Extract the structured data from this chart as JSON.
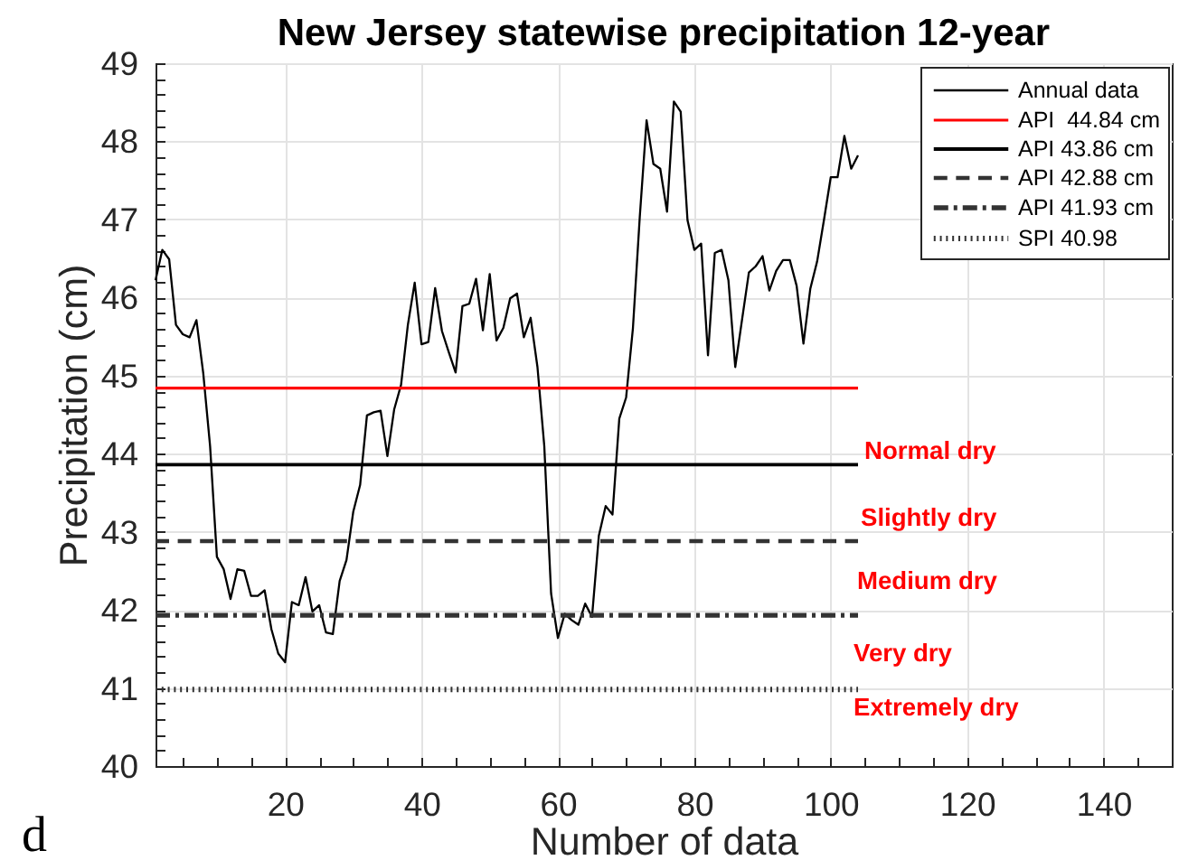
{
  "chart_data": {
    "type": "line",
    "title": "New Jersey statewise precipitation 12-year",
    "xlabel": "Number of data",
    "ylabel": "Precipitation (cm)",
    "xlim": [
      1,
      150
    ],
    "ylim": [
      40,
      49
    ],
    "xticks": [
      {
        "value": 5,
        "label": null
      },
      {
        "value": 10,
        "label": null
      },
      {
        "value": 15,
        "label": null
      },
      20,
      {
        "value": 25,
        "label": null
      },
      {
        "value": 30,
        "label": null
      },
      {
        "value": 35,
        "label": null
      },
      40,
      {
        "value": 45,
        "label": null
      },
      {
        "value": 50,
        "label": null
      },
      {
        "value": 55,
        "label": null
      },
      60,
      {
        "value": 65,
        "label": null
      },
      {
        "value": 70,
        "label": null
      },
      {
        "value": 75,
        "label": null
      },
      80,
      {
        "value": 85,
        "label": null
      },
      {
        "value": 90,
        "label": null
      },
      {
        "value": 95,
        "label": null
      },
      100,
      {
        "value": 105,
        "label": null
      },
      {
        "value": 110,
        "label": null
      },
      {
        "value": 115,
        "label": null
      },
      120,
      {
        "value": 125,
        "label": null
      },
      {
        "value": 130,
        "label": null
      },
      {
        "value": 135,
        "label": null
      },
      140,
      {
        "value": 145,
        "label": null
      }
    ],
    "yticks": [
      40,
      {
        "value": 40.2,
        "label": null
      },
      {
        "value": 40.4,
        "label": null
      },
      {
        "value": 40.6,
        "label": null
      },
      {
        "value": 40.8,
        "label": null
      },
      41,
      {
        "value": 41.2,
        "label": null
      },
      {
        "value": 41.4,
        "label": null
      },
      {
        "value": 41.6,
        "label": null
      },
      {
        "value": 41.8,
        "label": null
      },
      42,
      {
        "value": 42.2,
        "label": null
      },
      {
        "value": 42.4,
        "label": null
      },
      {
        "value": 42.6,
        "label": null
      },
      {
        "value": 42.8,
        "label": null
      },
      43,
      {
        "value": 43.2,
        "label": null
      },
      {
        "value": 43.4,
        "label": null
      },
      {
        "value": 43.6,
        "label": null
      },
      {
        "value": 43.8,
        "label": null
      },
      44,
      {
        "value": 44.2,
        "label": null
      },
      {
        "value": 44.4,
        "label": null
      },
      {
        "value": 44.6,
        "label": null
      },
      {
        "value": 44.8,
        "label": null
      },
      45,
      {
        "value": 45.2,
        "label": null
      },
      {
        "value": 45.4,
        "label": null
      },
      {
        "value": 45.6,
        "label": null
      },
      {
        "value": 45.8,
        "label": null
      },
      46,
      {
        "value": 46.2,
        "label": null
      },
      {
        "value": 46.4,
        "label": null
      },
      {
        "value": 46.6,
        "label": null
      },
      {
        "value": 46.8,
        "label": null
      },
      47,
      {
        "value": 47.2,
        "label": null
      },
      {
        "value": 47.4,
        "label": null
      },
      {
        "value": 47.6,
        "label": null
      },
      {
        "value": 47.8,
        "label": null
      },
      48,
      {
        "value": 48.2,
        "label": null
      },
      {
        "value": 48.4,
        "label": null
      },
      {
        "value": 48.6,
        "label": null
      },
      {
        "value": 48.8,
        "label": null
      },
      49
    ],
    "x": [
      1,
      2,
      3,
      4,
      5,
      6,
      7,
      8,
      9,
      10,
      11,
      12,
      13,
      14,
      15,
      16,
      17,
      18,
      19,
      20,
      21,
      22,
      23,
      24,
      25,
      26,
      27,
      28,
      29,
      30,
      31,
      32,
      33,
      34,
      35,
      36,
      37,
      38,
      39,
      40,
      41,
      42,
      43,
      44,
      45,
      46,
      47,
      48,
      49,
      50,
      51,
      52,
      53,
      54,
      55,
      56,
      57,
      58,
      59,
      60,
      61,
      62,
      63,
      64,
      65,
      66,
      67,
      68,
      69,
      70,
      71,
      72,
      73,
      74,
      75,
      76,
      77,
      78,
      79,
      80,
      81,
      82,
      83,
      84,
      85,
      86,
      87,
      88,
      89,
      90,
      91,
      92,
      93,
      94,
      95,
      96,
      97,
      98,
      99,
      100,
      101,
      102,
      103,
      104
    ],
    "series": [
      {
        "name": "Annual data",
        "color": "#000000",
        "line_style": "solid",
        "values": [
          46.22,
          46.61,
          46.49,
          45.65,
          45.53,
          45.49,
          45.71,
          45.03,
          44.1,
          42.68,
          42.52,
          42.14,
          42.52,
          42.5,
          42.18,
          42.18,
          42.25,
          41.75,
          41.44,
          41.33,
          42.1,
          42.06,
          42.42,
          41.98,
          42.06,
          41.71,
          41.69,
          42.37,
          42.64,
          43.26,
          43.6,
          44.49,
          44.53,
          44.55,
          43.97,
          44.57,
          44.88,
          45.65,
          46.19,
          45.4,
          45.43,
          46.12,
          45.57,
          45.3,
          45.04,
          45.89,
          45.92,
          46.24,
          45.58,
          46.3,
          45.45,
          45.61,
          45.99,
          46.05,
          45.49,
          45.74,
          45.11,
          44.1,
          42.21,
          41.64,
          41.95,
          41.87,
          41.81,
          42.08,
          41.91,
          42.95,
          43.33,
          43.22,
          44.45,
          44.72,
          45.61,
          47.03,
          48.27,
          47.71,
          47.65,
          47.1,
          48.51,
          48.38,
          46.99,
          46.61,
          46.69,
          45.26,
          46.57,
          46.61,
          46.22,
          45.11,
          45.72,
          46.32,
          46.4,
          46.53,
          46.09,
          46.34,
          46.48,
          46.48,
          46.15,
          45.41,
          46.11,
          46.46,
          46.99,
          47.54,
          47.54,
          48.07,
          47.65,
          47.82
        ]
      },
      {
        "name": "API  44.84 cm",
        "color": "#ff0000",
        "line_style": "solid",
        "values": [
          44.84,
          44.84,
          44.84,
          44.84,
          44.84,
          44.84,
          44.84,
          44.84,
          44.84,
          44.84,
          44.84,
          44.84,
          44.84,
          44.84,
          44.84,
          44.84,
          44.84,
          44.84,
          44.84,
          44.84,
          44.84,
          44.84,
          44.84,
          44.84,
          44.84,
          44.84,
          44.84,
          44.84,
          44.84,
          44.84,
          44.84,
          44.84,
          44.84,
          44.84,
          44.84,
          44.84,
          44.84,
          44.84,
          44.84,
          44.84,
          44.84,
          44.84,
          44.84,
          44.84,
          44.84,
          44.84,
          44.84,
          44.84,
          44.84,
          44.84,
          44.84,
          44.84,
          44.84,
          44.84,
          44.84,
          44.84,
          44.84,
          44.84,
          44.84,
          44.84,
          44.84,
          44.84,
          44.84,
          44.84,
          44.84,
          44.84,
          44.84,
          44.84,
          44.84,
          44.84,
          44.84,
          44.84,
          44.84,
          44.84,
          44.84,
          44.84,
          44.84,
          44.84,
          44.84,
          44.84,
          44.84,
          44.84,
          44.84,
          44.84,
          44.84,
          44.84,
          44.84,
          44.84,
          44.84,
          44.84,
          44.84,
          44.84,
          44.84,
          44.84,
          44.84,
          44.84,
          44.84,
          44.84,
          44.84,
          44.84,
          44.84,
          44.84,
          44.84,
          44.84
        ]
      },
      {
        "name": "API 43.86 cm",
        "color": "#000000",
        "line_style": "solid",
        "values": [
          43.86,
          43.86,
          43.86,
          43.86,
          43.86,
          43.86,
          43.86,
          43.86,
          43.86,
          43.86,
          43.86,
          43.86,
          43.86,
          43.86,
          43.86,
          43.86,
          43.86,
          43.86,
          43.86,
          43.86,
          43.86,
          43.86,
          43.86,
          43.86,
          43.86,
          43.86,
          43.86,
          43.86,
          43.86,
          43.86,
          43.86,
          43.86,
          43.86,
          43.86,
          43.86,
          43.86,
          43.86,
          43.86,
          43.86,
          43.86,
          43.86,
          43.86,
          43.86,
          43.86,
          43.86,
          43.86,
          43.86,
          43.86,
          43.86,
          43.86,
          43.86,
          43.86,
          43.86,
          43.86,
          43.86,
          43.86,
          43.86,
          43.86,
          43.86,
          43.86,
          43.86,
          43.86,
          43.86,
          43.86,
          43.86,
          43.86,
          43.86,
          43.86,
          43.86,
          43.86,
          43.86,
          43.86,
          43.86,
          43.86,
          43.86,
          43.86,
          43.86,
          43.86,
          43.86,
          43.86,
          43.86,
          43.86,
          43.86,
          43.86,
          43.86,
          43.86,
          43.86,
          43.86,
          43.86,
          43.86,
          43.86,
          43.86,
          43.86,
          43.86,
          43.86,
          43.86,
          43.86,
          43.86,
          43.86,
          43.86,
          43.86,
          43.86,
          43.86,
          43.86
        ]
      },
      {
        "name": "API 42.88 cm",
        "color": "#333333",
        "line_style": "dashed",
        "values": [
          42.88,
          42.88,
          42.88,
          42.88,
          42.88,
          42.88,
          42.88,
          42.88,
          42.88,
          42.88,
          42.88,
          42.88,
          42.88,
          42.88,
          42.88,
          42.88,
          42.88,
          42.88,
          42.88,
          42.88,
          42.88,
          42.88,
          42.88,
          42.88,
          42.88,
          42.88,
          42.88,
          42.88,
          42.88,
          42.88,
          42.88,
          42.88,
          42.88,
          42.88,
          42.88,
          42.88,
          42.88,
          42.88,
          42.88,
          42.88,
          42.88,
          42.88,
          42.88,
          42.88,
          42.88,
          42.88,
          42.88,
          42.88,
          42.88,
          42.88,
          42.88,
          42.88,
          42.88,
          42.88,
          42.88,
          42.88,
          42.88,
          42.88,
          42.88,
          42.88,
          42.88,
          42.88,
          42.88,
          42.88,
          42.88,
          42.88,
          42.88,
          42.88,
          42.88,
          42.88,
          42.88,
          42.88,
          42.88,
          42.88,
          42.88,
          42.88,
          42.88,
          42.88,
          42.88,
          42.88,
          42.88,
          42.88,
          42.88,
          42.88,
          42.88,
          42.88,
          42.88,
          42.88,
          42.88,
          42.88,
          42.88,
          42.88,
          42.88,
          42.88,
          42.88,
          42.88,
          42.88,
          42.88,
          42.88,
          42.88,
          42.88,
          42.88,
          42.88,
          42.88
        ]
      },
      {
        "name": "API 41.93 cm",
        "color": "#333333",
        "line_style": "dashdot",
        "values": [
          41.93,
          41.93,
          41.93,
          41.93,
          41.93,
          41.93,
          41.93,
          41.93,
          41.93,
          41.93,
          41.93,
          41.93,
          41.93,
          41.93,
          41.93,
          41.93,
          41.93,
          41.93,
          41.93,
          41.93,
          41.93,
          41.93,
          41.93,
          41.93,
          41.93,
          41.93,
          41.93,
          41.93,
          41.93,
          41.93,
          41.93,
          41.93,
          41.93,
          41.93,
          41.93,
          41.93,
          41.93,
          41.93,
          41.93,
          41.93,
          41.93,
          41.93,
          41.93,
          41.93,
          41.93,
          41.93,
          41.93,
          41.93,
          41.93,
          41.93,
          41.93,
          41.93,
          41.93,
          41.93,
          41.93,
          41.93,
          41.93,
          41.93,
          41.93,
          41.93,
          41.93,
          41.93,
          41.93,
          41.93,
          41.93,
          41.93,
          41.93,
          41.93,
          41.93,
          41.93,
          41.93,
          41.93,
          41.93,
          41.93,
          41.93,
          41.93,
          41.93,
          41.93,
          41.93,
          41.93,
          41.93,
          41.93,
          41.93,
          41.93,
          41.93,
          41.93,
          41.93,
          41.93,
          41.93,
          41.93,
          41.93,
          41.93,
          41.93,
          41.93,
          41.93,
          41.93,
          41.93,
          41.93,
          41.93,
          41.93,
          41.93,
          41.93,
          41.93,
          41.93
        ]
      },
      {
        "name": "SPI 40.98",
        "color": "#333333",
        "line_style": "dotted",
        "values": [
          40.98,
          40.98,
          40.98,
          40.98,
          40.98,
          40.98,
          40.98,
          40.98,
          40.98,
          40.98,
          40.98,
          40.98,
          40.98,
          40.98,
          40.98,
          40.98,
          40.98,
          40.98,
          40.98,
          40.98,
          40.98,
          40.98,
          40.98,
          40.98,
          40.98,
          40.98,
          40.98,
          40.98,
          40.98,
          40.98,
          40.98,
          40.98,
          40.98,
          40.98,
          40.98,
          40.98,
          40.98,
          40.98,
          40.98,
          40.98,
          40.98,
          40.98,
          40.98,
          40.98,
          40.98,
          40.98,
          40.98,
          40.98,
          40.98,
          40.98,
          40.98,
          40.98,
          40.98,
          40.98,
          40.98,
          40.98,
          40.98,
          40.98,
          40.98,
          40.98,
          40.98,
          40.98,
          40.98,
          40.98,
          40.98,
          40.98,
          40.98,
          40.98,
          40.98,
          40.98,
          40.98,
          40.98,
          40.98,
          40.98,
          40.98,
          40.98,
          40.98,
          40.98,
          40.98,
          40.98,
          40.98,
          40.98,
          40.98,
          40.98,
          40.98,
          40.98,
          40.98,
          40.98,
          40.98,
          40.98,
          40.98,
          40.98,
          40.98,
          40.98,
          40.98,
          40.98,
          40.98,
          40.98,
          40.98,
          40.98,
          40.98,
          40.98,
          40.98,
          40.98
        ]
      }
    ],
    "annotations": [
      "Normal dry",
      "Slightly dry",
      "Medium dry",
      "Very dry",
      "Extremely dry",
      "d"
    ],
    "grid": true,
    "legend": "top right"
  }
}
